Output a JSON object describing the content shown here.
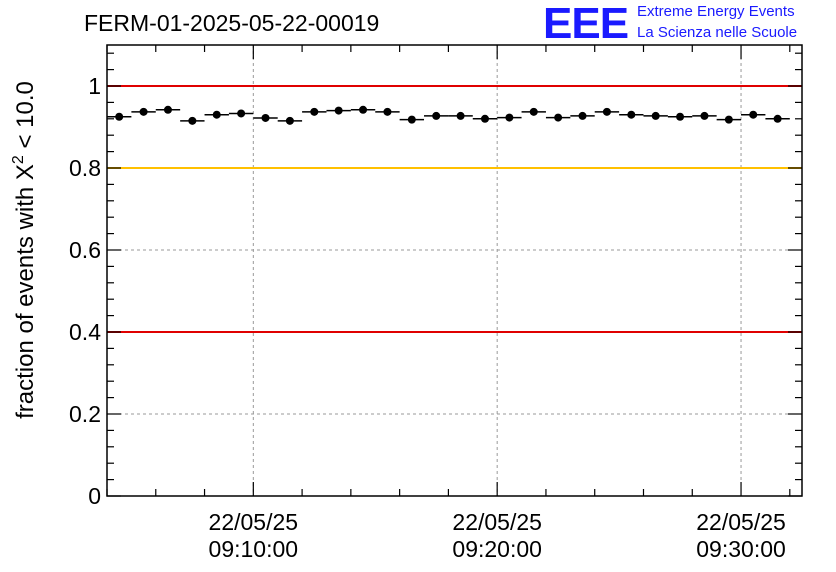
{
  "header": {
    "title": "FERM-01-2025-05-22-00019",
    "logo_text": "EEE",
    "logo_line1": "Extreme Energy Events",
    "logo_line2": "La Scienza nelle Scuole"
  },
  "colors": {
    "marker": "#000000",
    "threshold_red": "#e00000",
    "threshold_yellow": "#ffc000",
    "logo_blue": "#1a1aff",
    "grid": "#999999"
  },
  "chart_data": {
    "type": "scatter",
    "title": "FERM-01-2025-05-22-00019",
    "xlabel": "",
    "ylabel_main": "fraction of events with ",
    "ylabel_chi": "X",
    "ylabel_sup": "2",
    "ylabel_tail": " < 10.0",
    "ylim": [
      0,
      1.1
    ],
    "yticks": [
      0,
      0.2,
      0.4,
      0.6,
      0.8,
      1
    ],
    "ytick_labels": [
      "0",
      "0.2",
      "0.4",
      "0.6",
      "0.8",
      "1"
    ],
    "x_range_minutes": [
      0,
      28.5
    ],
    "xticks_minutes": [
      6,
      16,
      26
    ],
    "xtick_labels": [
      {
        "date": "22/05/25",
        "time": "09:10:00"
      },
      {
        "date": "22/05/25",
        "time": "09:20:00"
      },
      {
        "date": "22/05/25",
        "time": "09:30:00"
      }
    ],
    "bin_width_minutes": 1,
    "x": [
      0.5,
      1.5,
      2.5,
      3.5,
      4.5,
      5.5,
      6.5,
      7.5,
      8.5,
      9.5,
      10.5,
      11.5,
      12.5,
      13.5,
      14.5,
      15.5,
      16.5,
      17.5,
      18.5,
      19.5,
      20.5,
      21.5,
      22.5,
      23.5,
      24.5,
      25.5,
      26.5,
      27.5
    ],
    "y": [
      0.925,
      0.937,
      0.942,
      0.915,
      0.93,
      0.933,
      0.922,
      0.915,
      0.937,
      0.94,
      0.942,
      0.937,
      0.918,
      0.927,
      0.927,
      0.92,
      0.923,
      0.937,
      0.923,
      0.927,
      0.937,
      0.93,
      0.927,
      0.925,
      0.927,
      0.918,
      0.93,
      0.92
    ],
    "reference_lines": [
      {
        "y": 1.0,
        "color": "#e00000"
      },
      {
        "y": 0.8,
        "color": "#ffc000"
      },
      {
        "y": 0.4,
        "color": "#e00000"
      }
    ],
    "grid": true
  }
}
